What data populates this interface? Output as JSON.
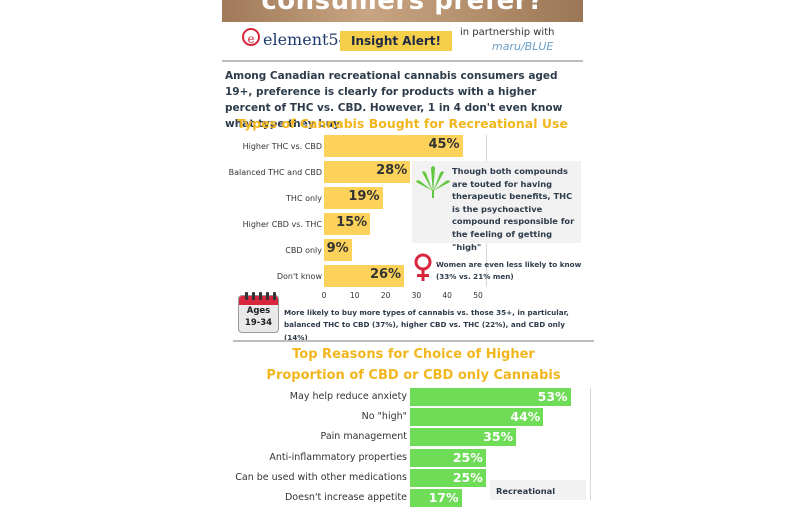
{
  "header": {
    "banner_title": "consumers prefer?",
    "logo_mark": "e",
    "logo_text": "element54",
    "insight_badge": "Insight Alert!",
    "partner_text": "in partnership with",
    "partner_name": "maru/BLUE"
  },
  "intro": "Among Canadian recreational cannabis consumers aged 19+, preference is clearly for products with a higher percent of THC vs. CBD. However, 1 in 4 don't even know what type they buy.",
  "colors": {
    "bar1": "#fcd25b",
    "bar2": "#6fdc58",
    "title1": "#f2b61e",
    "title2": "#f2b61e",
    "text": "#2d3b4a",
    "accent_red": "#d7263d",
    "leaf": "#5fc83c"
  },
  "icons": {
    "leaf": "cannabis-leaf-icon",
    "female": "female-symbol-icon",
    "calendar": "calendar-icon"
  },
  "chart_data": [
    {
      "type": "bar",
      "orientation": "horizontal",
      "title": "Types of Cannabis Bought for Recreational Use",
      "categories": [
        "Higher THC vs. CBD",
        "Balanced THC and CBD",
        "THC only",
        "Higher CBD vs. THC",
        "CBD only",
        "Don't know"
      ],
      "values": [
        45,
        28,
        19,
        15,
        9,
        26
      ],
      "value_labels": [
        "45%",
        "28%",
        "19%",
        "15%",
        "9%",
        "26%"
      ],
      "xlim": [
        0,
        50
      ],
      "xticks": [
        "0",
        "10",
        "20",
        "30",
        "40",
        "50"
      ],
      "grid": false,
      "xlabel": "",
      "ylabel": ""
    },
    {
      "type": "bar",
      "orientation": "horizontal",
      "title": "Top Reasons for Choice of Higher Proportion of CBD or CBD only Cannabis",
      "title_lines": [
        "Top Reasons for Choice of Higher",
        "Proportion of CBD or CBD only Cannabis"
      ],
      "categories": [
        "May help reduce anxiety",
        "No \"high\"",
        "Pain management",
        "Anti-inflammatory properties",
        "Can be used with other medications",
        "Doesn't increase appetite"
      ],
      "values": [
        53,
        44,
        35,
        25,
        25,
        17
      ],
      "value_labels": [
        "53%",
        "44%",
        "35%",
        "25%",
        "25%",
        "17%"
      ],
      "xlim": [
        0,
        60
      ],
      "grid": false,
      "xlabel": "",
      "ylabel": ""
    }
  ],
  "notes": {
    "thc_note": "Though both compounds are touted for having therapeutic benefits, THC is the psychoactive compound responsible for the feeling of getting \"high\"",
    "women_note": "Women are even less likely to know (33% vs. 21% men)",
    "ages_line1": "Ages",
    "ages_line2": "19-34",
    "ages_note": "More likely to buy more types of cannabis vs. those 35+, in particular, balanced THC to CBD (37%), higher CBD vs. THC (22%), and CBD only (14%)",
    "recreational_label": "Recreational"
  }
}
